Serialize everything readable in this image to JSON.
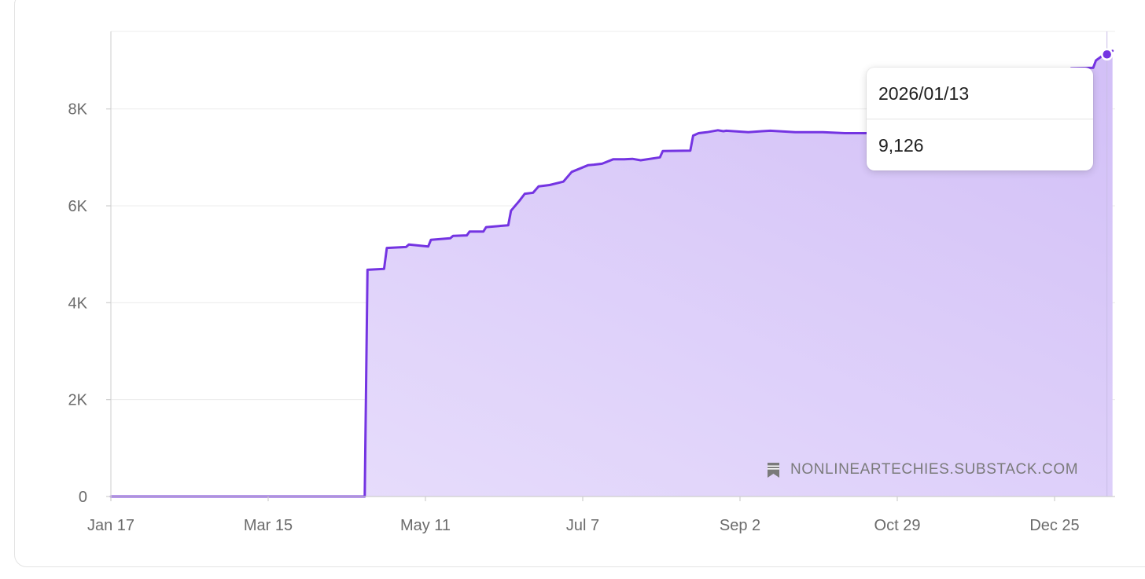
{
  "chart_data": {
    "type": "area",
    "title": "",
    "xlabel": "",
    "ylabel": "",
    "x_tick_labels": [
      "Jan 17",
      "Mar 15",
      "May 11",
      "Jul 7",
      "Sep 2",
      "Oct 29",
      "Dec 25"
    ],
    "x_tick_dates": [
      "2025-01-17",
      "2025-03-15",
      "2025-05-11",
      "2025-07-07",
      "2025-09-02",
      "2025-10-29",
      "2025-12-25"
    ],
    "y_tick_labels": [
      "0",
      "2K",
      "4K",
      "6K",
      "8K"
    ],
    "y_tick_values": [
      0,
      2000,
      4000,
      6000,
      8000
    ],
    "ylim": [
      0,
      9600
    ],
    "xlim": [
      "2025-01-17",
      "2026-01-15"
    ],
    "grid": true,
    "colors": {
      "line": "#7434e2",
      "fill_top": "#d2bff7",
      "fill_bottom": "#e9e0fc"
    },
    "series": [
      {
        "x": [
          "2025-01-17",
          "2025-04-19",
          "2025-04-20",
          "2025-04-26",
          "2025-04-27",
          "2025-05-04",
          "2025-05-05",
          "2025-05-12",
          "2025-05-13",
          "2025-05-20",
          "2025-05-21",
          "2025-05-26",
          "2025-05-27",
          "2025-06-01",
          "2025-06-02",
          "2025-06-10",
          "2025-06-11",
          "2025-06-14",
          "2025-06-16",
          "2025-06-19",
          "2025-06-21",
          "2025-06-25",
          "2025-06-30",
          "2025-07-03",
          "2025-07-09",
          "2025-07-11",
          "2025-07-14",
          "2025-07-18",
          "2025-07-22",
          "2025-07-25",
          "2025-07-28",
          "2025-08-04",
          "2025-08-05",
          "2025-08-15",
          "2025-08-16",
          "2025-08-18",
          "2025-08-21",
          "2025-08-25",
          "2025-08-27",
          "2025-08-28",
          "2025-09-05",
          "2025-09-10",
          "2025-09-13",
          "2025-09-22",
          "2025-10-02",
          "2025-10-10",
          "2025-10-22",
          "2025-12-10",
          "2025-12-31",
          "2026-01-08",
          "2026-01-09",
          "2026-01-12",
          "2026-01-13",
          "2026-01-15"
        ],
        "y": [
          0,
          0,
          4680,
          4700,
          5130,
          5150,
          5200,
          5160,
          5300,
          5330,
          5380,
          5390,
          5470,
          5470,
          5560,
          5600,
          5900,
          6100,
          6250,
          6270,
          6400,
          6430,
          6500,
          6700,
          6840,
          6850,
          6870,
          6960,
          6960,
          6970,
          6940,
          7000,
          7130,
          7140,
          7450,
          7500,
          7520,
          7560,
          7540,
          7550,
          7520,
          7540,
          7550,
          7520,
          7520,
          7500,
          7500,
          7500,
          8840,
          8850,
          9000,
          9126,
          9126,
          9200
        ]
      }
    ]
  },
  "tooltip": {
    "date": "2026/01/13",
    "value": "9,126"
  },
  "watermark": {
    "text": "NONLINEARTECHIES.SUBSTACK.COM",
    "icon": "bookmark-icon"
  }
}
